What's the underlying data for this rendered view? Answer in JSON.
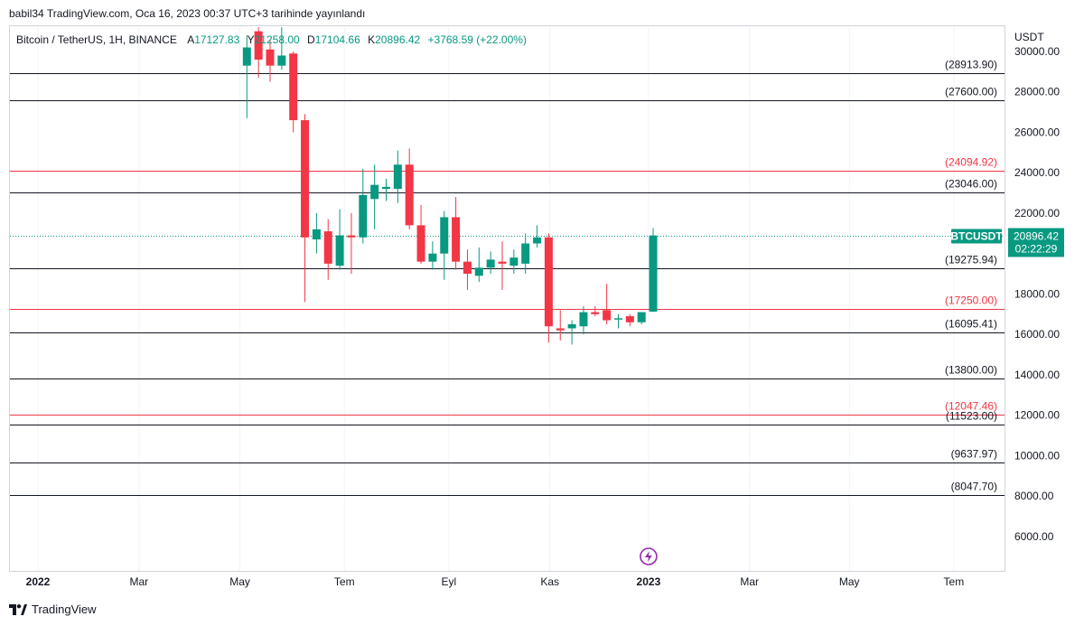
{
  "attribution": "babil34 TradingView.com, Oca 16, 2023 00:37 UTC+3 tarihinde yayınlandı",
  "legend": {
    "title": "Bitcoin / TetherUS, 1H, BINANCE",
    "o_label": "A",
    "o_value": "17127.83",
    "h_label": "Y",
    "h_value": "21258.00",
    "l_label": "D",
    "l_value": "17104.66",
    "c_label": "K",
    "c_value": "20896.42",
    "change": "+3768.59 (+22.00%)"
  },
  "currency": "USDT",
  "footer": {
    "brand": "TradingView"
  },
  "colors": {
    "up": "#089981",
    "down": "#f23645",
    "level_black": "#131722",
    "level_red": "#f23645"
  },
  "chart_data": {
    "type": "candlestick",
    "symbol": "BTCUSDT",
    "ylim": [
      4500,
      31000
    ],
    "y_ticks": [
      "6000.00",
      "8000.00",
      "10000.00",
      "12000.00",
      "14000.00",
      "16000.00",
      "18000.00",
      "20000.00",
      "22000.00",
      "24000.00",
      "26000.00",
      "28000.00",
      "30000.00"
    ],
    "x_labels": [
      {
        "label": "2022",
        "t": 0,
        "bold": true
      },
      {
        "label": "Mar",
        "t": 8.7
      },
      {
        "label": "May",
        "t": 17.4
      },
      {
        "label": "Tem",
        "t": 26.4
      },
      {
        "label": "Eyl",
        "t": 35.4
      },
      {
        "label": "Kas",
        "t": 44.1
      },
      {
        "label": "2023",
        "t": 52.6,
        "bold": true
      },
      {
        "label": "Mar",
        "t": 61.3
      },
      {
        "label": "May",
        "t": 69.9
      },
      {
        "label": "Tem",
        "t": 78.9
      }
    ],
    "candles": [
      {
        "t": 18.0,
        "o": 29300,
        "h": 30800,
        "l": 26700,
        "c": 30200
      },
      {
        "t": 19.0,
        "o": 31000,
        "h": 31200,
        "l": 28700,
        "c": 29600
      },
      {
        "t": 20.0,
        "o": 30100,
        "h": 30600,
        "l": 28500,
        "c": 29300
      },
      {
        "t": 21.0,
        "o": 29300,
        "h": 31200,
        "l": 29100,
        "c": 29800
      },
      {
        "t": 22.0,
        "o": 29900,
        "h": 30000,
        "l": 26000,
        "c": 26600
      },
      {
        "t": 23.0,
        "o": 26600,
        "h": 26900,
        "l": 17600,
        "c": 20800
      },
      {
        "t": 24.0,
        "o": 20700,
        "h": 22000,
        "l": 20000,
        "c": 21200
      },
      {
        "t": 25.0,
        "o": 21100,
        "h": 21700,
        "l": 18700,
        "c": 19500
      },
      {
        "t": 26.0,
        "o": 19400,
        "h": 22200,
        "l": 19200,
        "c": 20900
      },
      {
        "t": 27.0,
        "o": 20900,
        "h": 22000,
        "l": 19000,
        "c": 20800
      },
      {
        "t": 28.0,
        "o": 20800,
        "h": 24200,
        "l": 20500,
        "c": 22900
      },
      {
        "t": 29.0,
        "o": 22700,
        "h": 24400,
        "l": 21200,
        "c": 23400
      },
      {
        "t": 30.0,
        "o": 23200,
        "h": 23700,
        "l": 22600,
        "c": 23300
      },
      {
        "t": 31.0,
        "o": 23200,
        "h": 25100,
        "l": 22500,
        "c": 24400
      },
      {
        "t": 32.0,
        "o": 24400,
        "h": 25200,
        "l": 21200,
        "c": 21400
      },
      {
        "t": 33.0,
        "o": 21400,
        "h": 22400,
        "l": 19500,
        "c": 19600
      },
      {
        "t": 34.0,
        "o": 19600,
        "h": 20600,
        "l": 19200,
        "c": 20000
      },
      {
        "t": 35.0,
        "o": 20000,
        "h": 22100,
        "l": 18700,
        "c": 21800
      },
      {
        "t": 36.0,
        "o": 21800,
        "h": 22800,
        "l": 19200,
        "c": 19600
      },
      {
        "t": 37.0,
        "o": 19600,
        "h": 20200,
        "l": 18200,
        "c": 19000
      },
      {
        "t": 38.0,
        "o": 18900,
        "h": 20300,
        "l": 18600,
        "c": 19300
      },
      {
        "t": 39.0,
        "o": 19300,
        "h": 20100,
        "l": 19000,
        "c": 19700
      },
      {
        "t": 40.0,
        "o": 19600,
        "h": 20600,
        "l": 18200,
        "c": 19500
      },
      {
        "t": 41.0,
        "o": 19400,
        "h": 20200,
        "l": 19000,
        "c": 19800
      },
      {
        "t": 42.0,
        "o": 19500,
        "h": 21000,
        "l": 19000,
        "c": 20500
      },
      {
        "t": 43.0,
        "o": 20500,
        "h": 21400,
        "l": 20300,
        "c": 20800
      },
      {
        "t": 44.0,
        "o": 20800,
        "h": 21000,
        "l": 15600,
        "c": 16400
      },
      {
        "t": 45.0,
        "o": 16300,
        "h": 17200,
        "l": 15700,
        "c": 16200
      },
      {
        "t": 46.0,
        "o": 16300,
        "h": 16700,
        "l": 15500,
        "c": 16500
      },
      {
        "t": 47.0,
        "o": 16400,
        "h": 17400,
        "l": 16000,
        "c": 17100
      },
      {
        "t": 48.0,
        "o": 17100,
        "h": 17400,
        "l": 16900,
        "c": 17000
      },
      {
        "t": 49.0,
        "o": 17200,
        "h": 18500,
        "l": 16500,
        "c": 16700
      },
      {
        "t": 50.0,
        "o": 16800,
        "h": 17000,
        "l": 16300,
        "c": 16800
      },
      {
        "t": 51.0,
        "o": 16900,
        "h": 17000,
        "l": 16400,
        "c": 16600
      },
      {
        "t": 52.0,
        "o": 16600,
        "h": 17100,
        "l": 16500,
        "c": 17100
      },
      {
        "t": 53.0,
        "o": 17128,
        "h": 21258,
        "l": 17105,
        "c": 20896
      }
    ],
    "levels": [
      {
        "value": 28913.9,
        "label": "(28913.90)",
        "color": "black"
      },
      {
        "value": 27600.0,
        "label": "(27600.00)",
        "color": "black"
      },
      {
        "value": 24094.92,
        "label": "(24094.92)",
        "color": "red"
      },
      {
        "value": 23046.0,
        "label": "(23046.00)",
        "color": "black"
      },
      {
        "value": 19275.94,
        "label": "(19275.94)",
        "color": "black"
      },
      {
        "value": 17250.0,
        "label": "(17250.00)",
        "color": "red"
      },
      {
        "value": 16095.41,
        "label": "(16095.41)",
        "color": "black"
      },
      {
        "value": 13800.0,
        "label": "(13800.00)",
        "color": "black"
      },
      {
        "value": 12047.46,
        "label": "(12047.46)",
        "color": "red"
      },
      {
        "value": 11523.0,
        "label": "(11523.00)",
        "color": "black"
      },
      {
        "value": 9637.97,
        "label": "(9637.97)",
        "color": "black"
      },
      {
        "value": 8047.7,
        "label": "(8047.70)",
        "color": "black"
      }
    ],
    "last_price": {
      "value": 20896.42,
      "label": "BTCUSDT",
      "price": "20896.42",
      "countdown": "02:22:29"
    }
  }
}
